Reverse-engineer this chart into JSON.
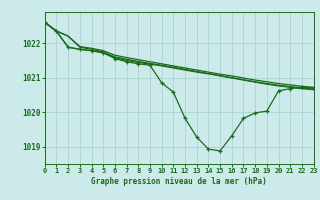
{
  "title": "Graphe pression niveau de la mer (hPa)",
  "bg_color": "#cceaea",
  "grid_color": "#aad4d4",
  "line_color": "#1a6b1a",
  "xlim": [
    0,
    23
  ],
  "ylim": [
    1018.5,
    1022.9
  ],
  "yticks": [
    1019,
    1020,
    1021,
    1022
  ],
  "xticks": [
    0,
    1,
    2,
    3,
    4,
    5,
    6,
    7,
    8,
    9,
    10,
    11,
    12,
    13,
    14,
    15,
    16,
    17,
    18,
    19,
    20,
    21,
    22,
    23
  ],
  "line1": [
    1022.6,
    1022.35,
    1022.2,
    1021.9,
    1021.85,
    1021.78,
    1021.65,
    1021.58,
    1021.52,
    1021.46,
    1021.4,
    1021.34,
    1021.28,
    1021.22,
    1021.16,
    1021.1,
    1021.05,
    1020.99,
    1020.93,
    1020.88,
    1020.83,
    1020.79,
    1020.75,
    1020.72
  ],
  "line2": [
    1022.6,
    1022.35,
    1022.2,
    1021.88,
    1021.82,
    1021.74,
    1021.6,
    1021.53,
    1021.47,
    1021.41,
    1021.36,
    1021.3,
    1021.24,
    1021.18,
    1021.12,
    1021.06,
    1021.0,
    1020.94,
    1020.88,
    1020.83,
    1020.78,
    1020.74,
    1020.7,
    1020.67
  ],
  "line3": [
    1022.6,
    1022.33,
    1021.88,
    1021.82,
    1021.78,
    1021.72,
    1021.58,
    1021.5,
    1021.44,
    1021.39,
    1021.34,
    1021.28,
    1021.22,
    1021.16,
    1021.11,
    1021.05,
    1020.99,
    1020.93,
    1020.87,
    1020.81,
    1020.76,
    1020.72,
    1020.68,
    1020.65
  ],
  "line4_x": [
    0,
    1,
    2,
    3,
    4,
    5,
    6,
    7,
    8,
    9,
    10,
    11,
    12,
    13,
    14,
    15,
    16,
    17,
    18,
    19,
    20,
    21,
    22,
    23
  ],
  "line4_y": [
    1022.6,
    1022.35,
    1021.88,
    1021.82,
    1021.78,
    1021.72,
    1021.55,
    1021.46,
    1021.4,
    1021.36,
    1020.85,
    1020.58,
    1019.82,
    1019.28,
    1018.93,
    1018.88,
    1019.32,
    1019.82,
    1019.98,
    1020.03,
    1020.62,
    1020.68,
    1020.73,
    1020.7
  ]
}
